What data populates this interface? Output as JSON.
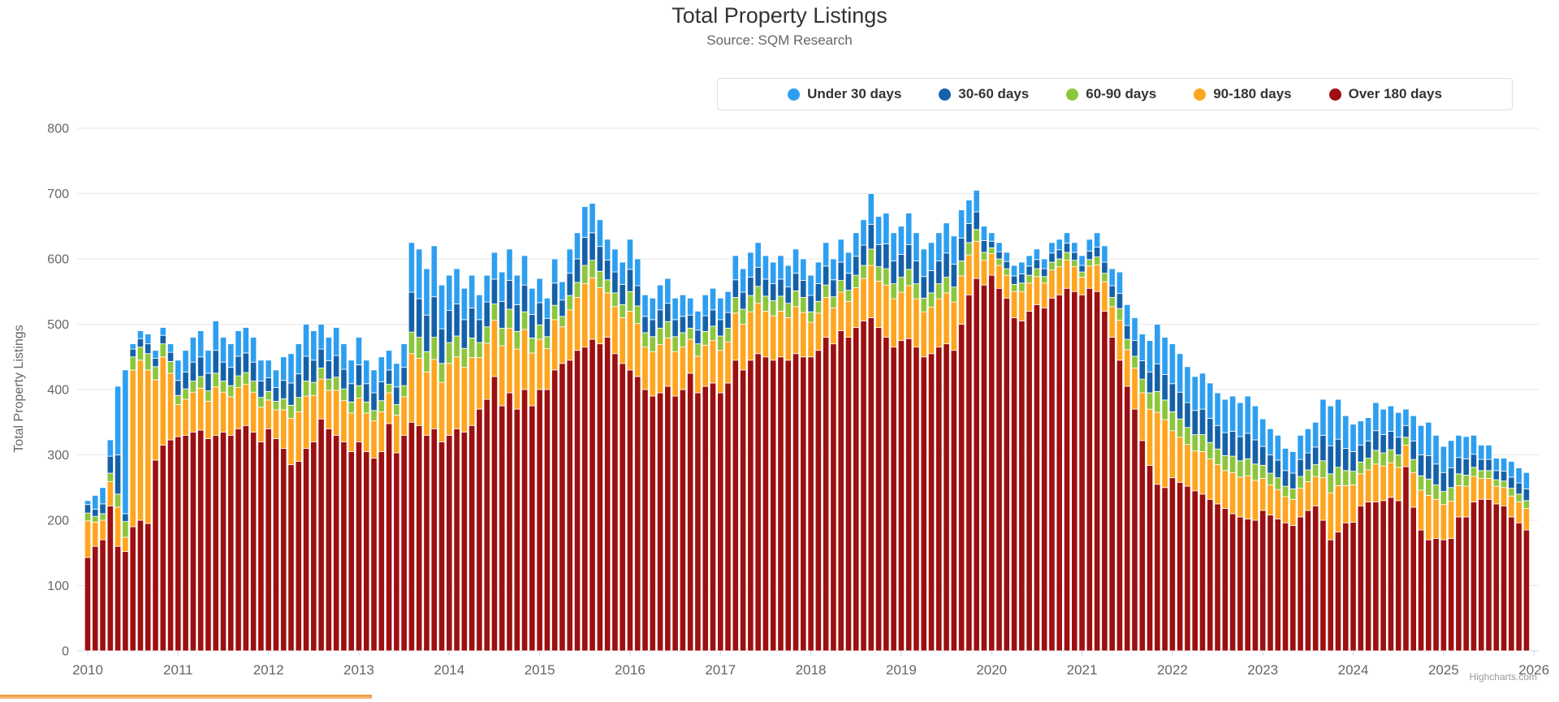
{
  "chart": {
    "title": "Total Property Listings",
    "subtitle": "Source: SQM Research",
    "credit": "Highcharts.com"
  },
  "yaxis": {
    "title": "Total Property Listings",
    "ticks": [
      0,
      100,
      200,
      300,
      400,
      500,
      600,
      700,
      800
    ]
  },
  "xaxis": {
    "ticks": [
      "2010",
      "2011",
      "2012",
      "2013",
      "2014",
      "2015",
      "2016",
      "2017",
      "2018",
      "2019",
      "2020",
      "2021",
      "2022",
      "2023",
      "2024",
      "2025",
      "2026"
    ]
  },
  "colors": {
    "under_30": "#2E9FF0",
    "days_30_60": "#1561A9",
    "days_60_90": "#8CC63C",
    "days_90_180": "#FFA51F",
    "over_180": "#9D0F10",
    "gridline": "#E7E7E7",
    "axis_line": "#CCD6EB",
    "label_gray": "#666666"
  },
  "chart_data": {
    "type": "bar",
    "stacked": true,
    "title": "Total Property Listings",
    "subtitle": "Source: SQM Research",
    "ylabel": "Total Property Listings",
    "ylim": [
      0,
      800
    ],
    "grid": true,
    "legend_position": "top",
    "x_start": "2010-01",
    "x_interval": "month",
    "x_end": "2025-12",
    "year_ticks": [
      "2010",
      "2011",
      "2012",
      "2013",
      "2014",
      "2015",
      "2016",
      "2017",
      "2018",
      "2019",
      "2020",
      "2021",
      "2022",
      "2023",
      "2024",
      "2025",
      "2026"
    ],
    "series": [
      {
        "name": "Under 30 days",
        "color": "#2E9FF0",
        "values": [
          6,
          21,
          25,
          25,
          105,
          220,
          8,
          12,
          15,
          12,
          12,
          13,
          31,
          33,
          38,
          40,
          35,
          45,
          38,
          36,
          39,
          39,
          38,
          32,
          27,
          27,
          36,
          45,
          46,
          49,
          45,
          38,
          36,
          43,
          39,
          36,
          42,
          36,
          35,
          38,
          30,
          36,
          36,
          76,
          76,
          71,
          78,
          67,
          54,
          54,
          48,
          50,
          38,
          41,
          41,
          45,
          48,
          45,
          45,
          40,
          37,
          31,
          37,
          28,
          37,
          40,
          47,
          45,
          41,
          32,
          35,
          34,
          46,
          41,
          33,
          33,
          38,
          38,
          33,
          33,
          26,
          29,
          32,
          33,
          33,
          32,
          37,
          36,
          38,
          38,
          36,
          33,
          36,
          33,
          37,
          33,
          31,
          33,
          36,
          32,
          35,
          32,
          36,
          39,
          47,
          43,
          47,
          43,
          43,
          48,
          43,
          42,
          43,
          43,
          46,
          43,
          43,
          36,
          33,
          22,
          13,
          14,
          14,
          16,
          18,
          16,
          16,
          15,
          16,
          16,
          16,
          15,
          15,
          18,
          22,
          25,
          26,
          33,
          32,
          35,
          41,
          48,
          61,
          57,
          61,
          59,
          55,
          52,
          55,
          54,
          50,
          51,
          54,
          52,
          57,
          52,
          42,
          40,
          38,
          34,
          33,
          37,
          37,
          38,
          55,
          61,
          61,
          50,
          42,
          37,
          36,
          43,
          39,
          39,
          38,
          25,
          39,
          45,
          51,
          44,
          40,
          42,
          34,
          34,
          29,
          22,
          22,
          19,
          20,
          24,
          23,
          25
        ]
      },
      {
        "name": "30-60 days",
        "color": "#1561A9",
        "values": [
          13,
          11,
          15,
          26,
          60,
          12,
          12,
          13,
          15,
          13,
          13,
          14,
          23,
          26,
          29,
          30,
          27,
          35,
          29,
          28,
          30,
          30,
          29,
          25,
          21,
          21,
          28,
          34,
          36,
          38,
          34,
          29,
          28,
          33,
          30,
          28,
          32,
          28,
          27,
          29,
          22,
          27,
          28,
          61,
          59,
          56,
          62,
          53,
          49,
          49,
          44,
          46,
          35,
          38,
          38,
          41,
          44,
          41,
          41,
          36,
          34,
          28,
          34,
          25,
          34,
          36,
          43,
          42,
          38,
          30,
          32,
          31,
          34,
          31,
          25,
          26,
          28,
          28,
          26,
          25,
          20,
          21,
          24,
          25,
          25,
          24,
          27,
          26,
          28,
          29,
          26,
          26,
          26,
          25,
          27,
          26,
          25,
          27,
          29,
          26,
          28,
          26,
          29,
          31,
          38,
          34,
          38,
          35,
          35,
          38,
          35,
          33,
          34,
          35,
          37,
          35,
          35,
          29,
          27,
          18,
          10,
          11,
          11,
          13,
          14,
          14,
          14,
          12,
          14,
          14,
          14,
          12,
          10,
          13,
          15,
          17,
          18,
          23,
          21,
          24,
          28,
          32,
          42,
          39,
          43,
          41,
          38,
          37,
          39,
          37,
          36,
          35,
          38,
          37,
          39,
          37,
          29,
          28,
          27,
          24,
          24,
          26,
          26,
          27,
          39,
          43,
          43,
          34,
          30,
          26,
          26,
          30,
          28,
          28,
          27,
          18,
          28,
          32,
          36,
          32,
          29,
          30,
          25,
          25,
          20,
          17,
          17,
          14,
          15,
          17,
          17,
          18
        ]
      },
      {
        "name": "60-90 days",
        "color": "#8CC63C",
        "values": [
          12,
          9,
          10,
          13,
          20,
          24,
          20,
          20,
          25,
          20,
          20,
          18,
          14,
          16,
          17,
          18,
          16,
          21,
          17,
          17,
          18,
          18,
          17,
          15,
          13,
          13,
          17,
          20,
          22,
          23,
          20,
          17,
          17,
          20,
          18,
          17,
          19,
          17,
          16,
          17,
          13,
          16,
          17,
          33,
          32,
          31,
          34,
          29,
          32,
          32,
          29,
          30,
          23,
          25,
          25,
          27,
          29,
          27,
          27,
          23,
          22,
          18,
          22,
          16,
          22,
          23,
          28,
          27,
          25,
          20,
          21,
          20,
          30,
          27,
          22,
          23,
          25,
          25,
          23,
          22,
          17,
          19,
          21,
          22,
          22,
          21,
          24,
          23,
          25,
          26,
          23,
          23,
          23,
          22,
          24,
          23,
          16,
          18,
          19,
          17,
          18,
          17,
          19,
          20,
          25,
          22,
          25,
          23,
          23,
          25,
          23,
          21,
          22,
          23,
          24,
          23,
          23,
          19,
          18,
          12,
          9,
          10,
          10,
          11,
          13,
          12,
          12,
          10,
          12,
          12,
          12,
          10,
          8,
          10,
          12,
          13,
          14,
          18,
          16,
          18,
          21,
          25,
          32,
          30,
          29,
          28,
          26,
          25,
          26,
          25,
          24,
          23,
          25,
          25,
          26,
          25,
          20,
          18,
          18,
          16,
          16,
          18,
          18,
          18,
          26,
          29,
          28,
          23,
          21,
          18,
          18,
          21,
          20,
          20,
          19,
          12,
          20,
          22,
          25,
          22,
          20,
          21,
          18,
          17,
          14,
          12,
          12,
          10,
          10,
          12,
          12,
          12
        ]
      },
      {
        "name": "90-180 days",
        "color": "#FFA51F",
        "values": [
          56,
          37,
          30,
          37,
          60,
          22,
          240,
          245,
          235,
          123,
          135,
          102,
          49,
          55,
          61,
          64,
          57,
          74,
          61,
          59,
          63,
          63,
          61,
          53,
          44,
          44,
          59,
          71,
          76,
          80,
          71,
          61,
          59,
          69,
          63,
          59,
          67,
          59,
          57,
          61,
          47,
          58,
          59,
          105,
          103,
          97,
          106,
          91,
          110,
          110,
          99,
          104,
          79,
          86,
          86,
          92,
          99,
          92,
          92,
          81,
          77,
          63,
          77,
          56,
          77,
          81,
          97,
          94,
          86,
          68,
          72,
          70,
          90,
          81,
          65,
          68,
          74,
          74,
          68,
          65,
          52,
          56,
          63,
          65,
          65,
          63,
          72,
          70,
          74,
          77,
          70,
          68,
          70,
          65,
          72,
          68,
          53,
          57,
          61,
          55,
          59,
          55,
          61,
          65,
          80,
          71,
          80,
          74,
          74,
          81,
          74,
          69,
          71,
          74,
          78,
          74,
          74,
          61,
          57,
          38,
          33,
          35,
          35,
          40,
          45,
          43,
          43,
          38,
          43,
          43,
          43,
          38,
          27,
          34,
          41,
          45,
          47,
          61,
          56,
          63,
          73,
          86,
          110,
          104,
          72,
          69,
          64,
          61,
          65,
          62,
          60,
          58,
          63,
          61,
          66,
          61,
          49,
          46,
          45,
          40,
          40,
          44,
          44,
          45,
          65,
          72,
          71,
          57,
          57,
          49,
          49,
          58,
          53,
          53,
          51,
          33,
          53,
          61,
          68,
          60,
          54,
          57,
          48,
          47,
          39,
          32,
          32,
          27,
          28,
          32,
          32,
          33
        ]
      },
      {
        "name": "Over 180 days",
        "color": "#9D0F10",
        "values": [
          143,
          160,
          170,
          222,
          160,
          152,
          190,
          200,
          195,
          292,
          315,
          323,
          328,
          330,
          335,
          338,
          325,
          330,
          335,
          330,
          340,
          345,
          335,
          320,
          340,
          325,
          310,
          285,
          290,
          310,
          320,
          355,
          340,
          330,
          320,
          305,
          320,
          305,
          295,
          305,
          348,
          303,
          330,
          350,
          345,
          330,
          340,
          320,
          330,
          340,
          335,
          345,
          370,
          385,
          420,
          375,
          395,
          370,
          400,
          375,
          400,
          400,
          430,
          440,
          445,
          460,
          465,
          477,
          470,
          480,
          455,
          440,
          430,
          420,
          400,
          390,
          395,
          405,
          390,
          400,
          425,
          395,
          405,
          410,
          395,
          410,
          445,
          430,
          445,
          455,
          450,
          445,
          450,
          445,
          455,
          450,
          450,
          460,
          480,
          470,
          490,
          480,
          495,
          505,
          510,
          495,
          480,
          465,
          475,
          478,
          465,
          450,
          455,
          465,
          470,
          460,
          500,
          545,
          570,
          560,
          575,
          555,
          540,
          510,
          505,
          520,
          530,
          525,
          540,
          545,
          555,
          550,
          545,
          555,
          550,
          520,
          480,
          445,
          405,
          370,
          322,
          284,
          255,
          250,
          265,
          258,
          252,
          245,
          240,
          232,
          225,
          218,
          210,
          205,
          202,
          200,
          215,
          208,
          202,
          196,
          192,
          205,
          215,
          222,
          200,
          170,
          182,
          196,
          197,
          222,
          228,
          228,
          230,
          235,
          230,
          282,
          220,
          185,
          170,
          172,
          170,
          172,
          205,
          205,
          228,
          232,
          232,
          225,
          222,
          205,
          196,
          185
        ]
      }
    ]
  }
}
